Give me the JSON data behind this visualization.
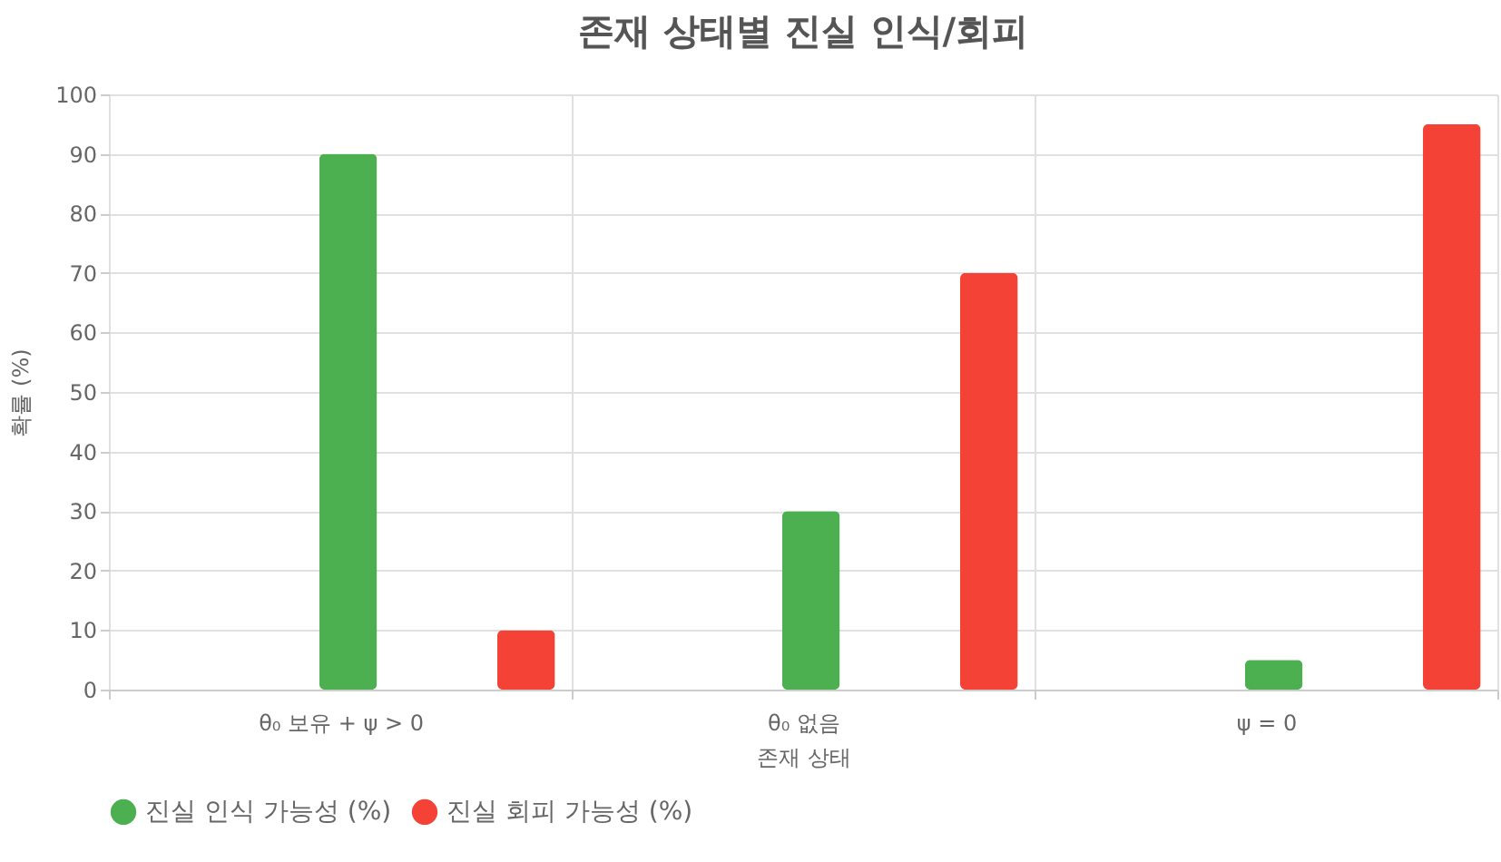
{
  "chart_data": {
    "type": "bar",
    "title": "존재 상태별 진실 인식/회피",
    "xlabel": "존재 상태",
    "ylabel": "확률 (%)",
    "categories": [
      "θ₀ 보유 + ψ > 0",
      "θ₀ 없음",
      "ψ = 0"
    ],
    "series": [
      {
        "name": "진실 인식 가능성 (%)",
        "color": "#4caf50",
        "values": [
          90,
          30,
          5
        ]
      },
      {
        "name": "진실 회피 가능성 (%)",
        "color": "#f44336",
        "values": [
          10,
          70,
          95
        ]
      }
    ],
    "ylim": [
      0,
      100
    ],
    "yticks": [
      0,
      10,
      20,
      30,
      40,
      50,
      60,
      70,
      80,
      90,
      100
    ],
    "grid": true,
    "legend": "bottom"
  }
}
